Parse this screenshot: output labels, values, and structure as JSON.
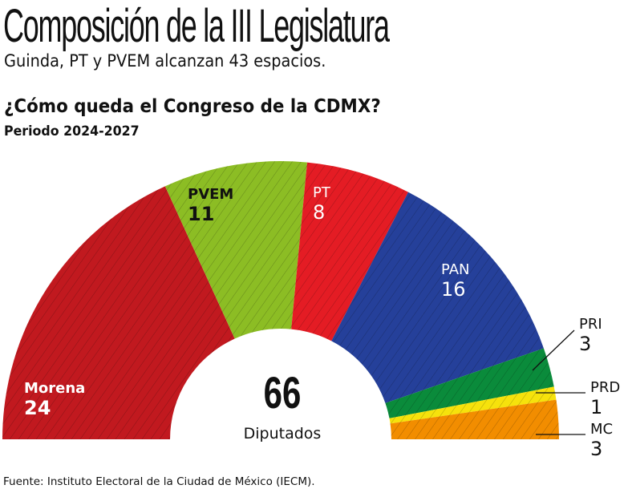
{
  "title": "Composición de la III Legislatura",
  "subtitle": "Guinda, PT y PVEM alcanzan 43 espacios.",
  "chart_data": {
    "type": "pie",
    "variant": "half-donut",
    "title": "¿Cómo queda el Congreso de la CDMX?",
    "subtitle": "Periodo 2024-2027",
    "total": {
      "value": "66",
      "label": "Diputados"
    },
    "series": [
      {
        "name": "Morena",
        "value": 24,
        "color": "#c1191f"
      },
      {
        "name": "PVEM",
        "value": 11,
        "color": "#8cbd24"
      },
      {
        "name": "PT",
        "value": 8,
        "color": "#e41c24"
      },
      {
        "name": "PAN",
        "value": 16,
        "color": "#25409a"
      },
      {
        "name": "PRI",
        "value": 3,
        "color": "#0a8b3b"
      },
      {
        "name": "PRD",
        "value": 1,
        "color": "#f6e20c"
      },
      {
        "name": "MC",
        "value": 3,
        "color": "#f28d00"
      }
    ],
    "pattern": "diagonal-hatch"
  },
  "source": "Fuente: Instituto Electoral de la Ciudad de México (IECM)."
}
